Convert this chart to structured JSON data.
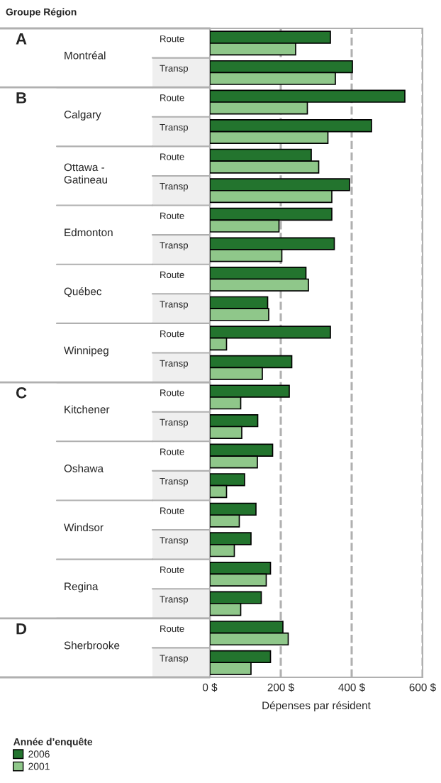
{
  "chart_data": {
    "type": "bar",
    "orientation": "horizontal",
    "categories": [
      "Route",
      "Transp",
      "Route",
      "Transp",
      "Route",
      "Transp",
      "Route",
      "Transp",
      "Route",
      "Transp",
      "Route",
      "Transp",
      "Route",
      "Transp",
      "Route",
      "Transp",
      "Route",
      "Transp",
      "Route",
      "Transp",
      "Route",
      "Transp"
    ],
    "series": [
      {
        "name": "2006",
        "color": "#23742e",
        "values": [
          340,
          402,
          550,
          456,
          286,
          394,
          344,
          351,
          271,
          163,
          340,
          231,
          224,
          135,
          177,
          98,
          130,
          116,
          171,
          145,
          206,
          171
        ]
      },
      {
        "name": "2001",
        "color": "#8fc78a",
        "values": [
          242,
          354,
          275,
          333,
          307,
          344,
          195,
          203,
          278,
          166,
          47,
          148,
          87,
          90,
          134,
          47,
          83,
          69,
          159,
          87,
          221,
          116
        ]
      }
    ],
    "xlabel": "Dépenses par résident",
    "xlim": [
      0,
      600
    ],
    "xticks": [
      {
        "value": 0,
        "label": "0 $"
      },
      {
        "value": 200,
        "label": "200 $"
      },
      {
        "value": 400,
        "label": "400 $"
      },
      {
        "value": 600,
        "label": "600 $"
      }
    ],
    "grid": "x",
    "legend": "bottom",
    "legend_title": "Année d’enquête",
    "annotations": [
      "Groupe Région",
      "A",
      "Montréal",
      "B",
      "Calgary",
      "Ottawa -\nGatineau",
      "Edmonton",
      "Québec",
      "Winnipeg",
      "C",
      "Kitchener",
      "Oshawa",
      "Windsor",
      "Regina",
      "D",
      "Sherbrooke"
    ]
  }
}
